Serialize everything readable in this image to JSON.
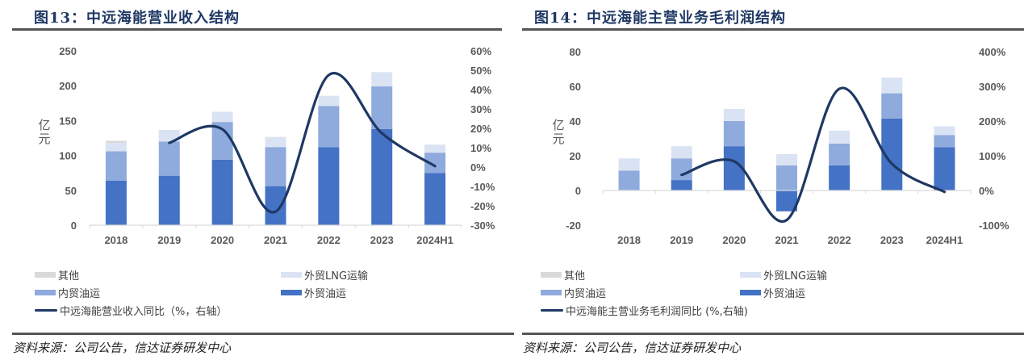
{
  "colors": {
    "title": "#1f3864",
    "other": "#d9d9d9",
    "lng": "#dae3f3",
    "domestic_oil": "#8faadc",
    "foreign_oil": "#4472c4",
    "line": "#1f3864"
  },
  "chart_data": [
    {
      "type": "bar",
      "stacked": true,
      "title": "图13：中远海能营业收入结构",
      "ylabel": "亿元",
      "y2label": "%",
      "categories": [
        "2018",
        "2019",
        "2020",
        "2021",
        "2022",
        "2023",
        "2024H1"
      ],
      "ylim": [
        0,
        250
      ],
      "yticks": [
        "250",
        "200",
        "150",
        "100",
        "50",
        "0"
      ],
      "y2lim": [
        -30,
        60
      ],
      "y2ticks": [
        "60%",
        "50%",
        "40%",
        "30%",
        "20%",
        "10%",
        "0%",
        "-10%",
        "-20%",
        "-30%"
      ],
      "series": [
        {
          "name": "外贸油运",
          "kind": "bar",
          "color_key": "foreign_oil",
          "values": [
            64,
            71,
            94,
            56,
            112,
            138,
            75
          ]
        },
        {
          "name": "内贸油运",
          "kind": "bar",
          "color_key": "domestic_oil",
          "values": [
            42,
            49,
            54,
            56,
            59,
            61,
            29
          ]
        },
        {
          "name": "外贸LNG运输",
          "kind": "bar",
          "color_key": "lng",
          "values": [
            12,
            16,
            14,
            14,
            14,
            20,
            11
          ]
        },
        {
          "name": "其他",
          "kind": "bar",
          "color_key": "other",
          "values": [
            3,
            0.5,
            0.5,
            0.5,
            0.5,
            0.5,
            0.5
          ]
        },
        {
          "name": "中远海能营业收入同比（%，右轴）",
          "kind": "line",
          "axis": "right",
          "color_key": "line",
          "values": [
            null,
            12.5,
            19.5,
            -23,
            47.5,
            17.5,
            0.5
          ]
        }
      ],
      "legend": [
        "其他",
        "外贸LNG运输",
        "内贸油运",
        "外贸油运",
        "中远海能营业收入同比（%，右轴）"
      ],
      "legend_position": "bottom",
      "source": "资料来源：公司公告，信达证券研发中心"
    },
    {
      "type": "bar",
      "stacked": true,
      "title": "图14：中远海能主营业务毛利润结构",
      "ylabel": "亿元",
      "y2label": "%",
      "categories": [
        "2018",
        "2019",
        "2020",
        "2021",
        "2022",
        "2023",
        "2024H1"
      ],
      "ylim": [
        -20,
        80
      ],
      "yticks": [
        "80",
        "60",
        "40",
        "20",
        "0",
        "-20"
      ],
      "y2lim": [
        -100,
        400
      ],
      "y2ticks": [
        "400%",
        "300%",
        "200%",
        "100%",
        "0%",
        "-100%"
      ],
      "series": [
        {
          "name": "外贸油运",
          "kind": "bar",
          "color_key": "foreign_oil",
          "values": [
            0.3,
            6,
            25.5,
            -12,
            14.5,
            41.5,
            25
          ]
        },
        {
          "name": "内贸油运",
          "kind": "bar",
          "color_key": "domestic_oil",
          "values": [
            11.2,
            12.5,
            14.5,
            14.5,
            12.5,
            14.5,
            7
          ]
        },
        {
          "name": "外贸LNG运输",
          "kind": "bar",
          "color_key": "lng",
          "values": [
            7,
            7,
            7,
            6.5,
            7.5,
            9,
            5
          ]
        },
        {
          "name": "其他",
          "kind": "bar",
          "color_key": "other",
          "values": [
            0,
            0,
            0,
            0,
            0,
            0,
            0
          ]
        },
        {
          "name": "中远海能主营业务毛利润同比 (%,右轴)",
          "kind": "line",
          "axis": "right",
          "color_key": "line",
          "values": [
            null,
            45,
            84,
            -85,
            293,
            77,
            -4
          ]
        }
      ],
      "legend": [
        "其他",
        "外贸LNG运输",
        "内贸油运",
        "外贸油运",
        "中远海能主营业务毛利润同比 (%,右轴)"
      ],
      "legend_position": "bottom",
      "source": "资料来源：公司公告，信达证券研发中心"
    }
  ]
}
